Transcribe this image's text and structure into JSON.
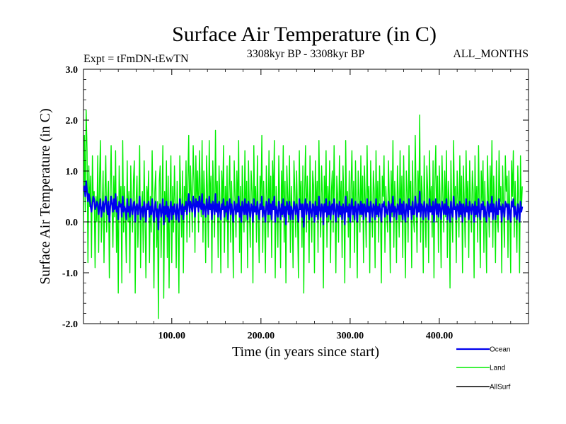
{
  "chart_data": {
    "type": "line",
    "title": "Surface Air Temperature (in C)",
    "subtitle_left": "Expt = tFmDN-tEwTN",
    "subtitle_center": "3308kyr BP - 3308kyr BP",
    "subtitle_right": "ALL_MONTHS",
    "xlabel": "Time (in years since start)",
    "ylabel": "Surface Air Temperature (in C)",
    "xlim": [
      1,
      500
    ],
    "ylim": [
      -2.0,
      3.0
    ],
    "xticks": [
      100,
      200,
      300,
      400
    ],
    "xtick_labels": [
      "100.00",
      "200.00",
      "300.00",
      "400.00"
    ],
    "yticks": [
      -2.0,
      -1.0,
      0.0,
      1.0,
      2.0,
      3.0
    ],
    "ytick_labels": [
      "-2.0",
      "-1.0",
      "0.0",
      "1.0",
      "2.0",
      "3.0"
    ],
    "zero_line": true,
    "x_start": 1,
    "x_step": 1,
    "series": [
      {
        "name": "Land",
        "color": "#00ee00",
        "values": [
          -0.2,
          1.7,
          0.2,
          2.2,
          1.4,
          -0.8,
          1.1,
          0.3,
          0.9,
          -0.7,
          1.3,
          0.4,
          0.6,
          -0.9,
          0.5,
          0.0,
          1.3,
          -0.6,
          0.8,
          1.6,
          -0.4,
          0.2,
          1.0,
          -0.8,
          0.5,
          1.3,
          -0.2,
          0.4,
          0.8,
          -1.1,
          0.6,
          1.5,
          0.3,
          -0.5,
          0.9,
          0.1,
          1.4,
          -0.6,
          0.5,
          -1.4,
          1.1,
          0.3,
          0.7,
          -1.2,
          1.6,
          -0.2,
          0.7,
          0.1,
          -0.8,
          1.2,
          0.0,
          0.6,
          -1.0,
          1.1,
          0.2,
          -0.2,
          0.8,
          1.2,
          -1.4,
          0.4,
          0.9,
          -0.5,
          0.3,
          1.5,
          -0.9,
          0.2,
          0.6,
          -0.6,
          1.2,
          0.1,
          -1.1,
          0.7,
          0.3,
          1.0,
          -0.8,
          0.5,
          -0.2,
          1.4,
          0.2,
          -1.3,
          0.6,
          1.0,
          -0.5,
          0.4,
          -1.9,
          0.8,
          1.1,
          -0.7,
          0.3,
          1.5,
          -1.5,
          0.6,
          0.0,
          1.2,
          -0.7,
          0.9,
          -1.3,
          0.4,
          1.3,
          -0.8,
          0.7,
          -0.2,
          1.1,
          0.3,
          -0.9,
          0.8,
          0.1,
          -1.4,
          1.3,
          0.5,
          -0.3,
          1.0,
          -1.0,
          0.7,
          0.2,
          1.2,
          -0.4,
          0.8,
          1.7,
          -0.3,
          1.1,
          0.5,
          -0.2,
          1.5,
          0.8,
          -0.6,
          1.3,
          0.4,
          1.0,
          -0.2,
          1.4,
          0.6,
          0.1,
          1.6,
          -0.4,
          1.0,
          0.4,
          -0.8,
          1.3,
          0.6,
          -0.5,
          1.6,
          0.3,
          0.9,
          -1.0,
          1.2,
          0.5,
          -0.3,
          1.8,
          0.2,
          0.8,
          -0.7,
          1.1,
          0.4,
          -1.0,
          1.0,
          0.3,
          1.5,
          -0.6,
          0.7,
          0.0,
          1.1,
          -0.9,
          0.6,
          1.3,
          -0.4,
          0.8,
          0.2,
          -1.1,
          1.2,
          0.5,
          -0.3,
          1.0,
          0.2,
          1.6,
          -0.6,
          0.7,
          -1.0,
          1.1,
          0.4,
          -0.2,
          1.4,
          0.0,
          0.8,
          -0.9,
          1.2,
          0.3,
          -0.5,
          1.0,
          0.6,
          -1.2,
          1.5,
          0.2,
          0.7,
          -0.4,
          1.3,
          0.1,
          -0.8,
          0.9,
          0.4,
          1.7,
          -0.6,
          0.8,
          0.2,
          -1.0,
          1.1,
          0.5,
          -0.3,
          1.4,
          0.0,
          0.9,
          -0.7,
          1.2,
          0.3,
          1.6,
          -1.1,
          0.7,
          0.2,
          -0.5,
          1.3,
          0.4,
          -0.9,
          1.0,
          0.1,
          1.5,
          -0.4,
          0.8,
          -1.2,
          1.1,
          0.5,
          0.0,
          1.3,
          -0.6,
          0.7,
          0.2,
          -0.9,
          1.2,
          0.6,
          -0.3,
          1.0,
          0.1,
          -1.1,
          1.4,
          0.3,
          0.8,
          -0.5,
          1.1,
          -1.4,
          0.6,
          1.5,
          -0.2,
          0.9,
          0.4,
          -0.8,
          1.3,
          0.2,
          -0.4,
          1.0,
          0.7,
          -1.0,
          1.2,
          0.1,
          0.8,
          -0.6,
          1.6,
          0.3,
          -0.3,
          1.1,
          0.5,
          -1.3,
          0.9,
          0.2,
          1.4,
          -0.5,
          0.7,
          0.0,
          1.2,
          -0.8,
          0.6,
          1.0,
          -0.2,
          1.5,
          0.3,
          -1.0,
          0.9,
          0.5,
          -0.4,
          1.3,
          0.1,
          0.8,
          -0.7,
          1.1,
          0.4,
          -1.2,
          1.6,
          0.2,
          0.6,
          -0.3,
          1.0,
          -0.9,
          0.7,
          1.4,
          0.0,
          0.8,
          -0.6,
          1.2,
          0.3,
          -1.1,
          1.0,
          0.5,
          -0.2,
          1.3,
          0.1,
          0.9,
          -0.8,
          1.1,
          0.4,
          -0.5,
          1.5,
          0.2,
          0.7,
          -1.0,
          1.2,
          0.3,
          -0.3,
          1.0,
          0.6,
          -0.9,
          1.4,
          0.1,
          0.8,
          -0.4,
          1.1,
          0.3,
          -1.2,
          0.9,
          0.5,
          1.3,
          -0.6,
          0.7,
          0.2,
          -0.2,
          1.2,
          0.4,
          -1.0,
          1.0,
          0.1,
          1.6,
          -0.5,
          0.8,
          0.3,
          -0.8,
          1.1,
          0.5,
          -0.3,
          1.4,
          0.0,
          0.9,
          -0.7,
          1.3,
          0.2,
          -1.1,
          1.0,
          0.6,
          -0.4,
          1.5,
          0.3,
          0.8,
          -0.9,
          1.2,
          0.1,
          -0.2,
          1.7,
          0.4,
          -0.6,
          1.0,
          0.2,
          2.1,
          -0.4,
          0.9,
          0.5,
          -1.0,
          1.3,
          0.3,
          -0.5,
          1.1,
          0.6,
          -0.8,
          1.4,
          0.2,
          0.7,
          -0.3,
          1.2,
          -1.1,
          0.8,
          1.5,
          0.0,
          0.9,
          -0.6,
          1.1,
          0.3,
          -0.9,
          1.3,
          0.5,
          -0.2,
          1.0,
          0.1,
          1.4,
          -0.7,
          0.8,
          0.4,
          -1.3,
          1.2,
          0.2,
          -0.4,
          1.6,
          0.3,
          0.7,
          -0.8,
          1.0,
          0.5,
          -0.3,
          1.3,
          0.1,
          0.9,
          -1.0,
          1.1,
          0.4,
          -0.5,
          1.4,
          0.2,
          0.8,
          -0.7,
          1.2,
          0.3,
          -0.2,
          1.0,
          0.6,
          -1.1,
          1.3,
          0.1,
          0.7,
          -0.4,
          1.5,
          0.2,
          -0.9,
          1.0,
          0.4,
          1.2,
          -0.6,
          0.8,
          0.0,
          -1.0,
          1.3,
          0.5,
          -0.3,
          1.1,
          0.2,
          1.6,
          -0.5,
          0.9,
          0.3,
          -0.8,
          1.2,
          0.1,
          -0.2,
          1.4,
          0.4,
          0.7,
          -1.0,
          1.1,
          0.3,
          -0.5,
          1.3,
          0.6,
          0.9,
          -0.7,
          1.0,
          0.2,
          -1.0,
          1.2,
          0.5,
          1.4,
          -0.3,
          0.8,
          0.1,
          -0.6,
          1.1,
          0.4,
          -1.0,
          1.3,
          0.2,
          0.7
        ]
      },
      {
        "name": "Ocean",
        "color": "#0000ee",
        "values": [
          0.6,
          0.7,
          0.5,
          0.8,
          0.6,
          0.4,
          0.55,
          0.45,
          0.3,
          0.2,
          0.35,
          0.5,
          0.45,
          0.25,
          0.3,
          0.4,
          0.35,
          0.15,
          0.3,
          0.45,
          0.1,
          0.25,
          0.4,
          0.2,
          0.35,
          0.5,
          0.3,
          0.15,
          0.4,
          0.0,
          0.3,
          0.5,
          0.35,
          0.2,
          0.45,
          0.25,
          0.55,
          0.2,
          0.3,
          0.05,
          0.4,
          0.3,
          0.35,
          0.1,
          0.5,
          0.2,
          0.3,
          0.25,
          0.05,
          0.45,
          0.2,
          0.3,
          0.1,
          0.45,
          0.25,
          0.15,
          0.35,
          0.4,
          0.0,
          0.3,
          0.35,
          0.15,
          0.3,
          0.5,
          0.05,
          0.25,
          0.3,
          0.1,
          0.4,
          0.25,
          0.0,
          0.35,
          0.25,
          0.4,
          0.1,
          0.3,
          0.15,
          0.45,
          0.2,
          0.0,
          0.3,
          0.4,
          0.1,
          0.25,
          -0.15,
          0.3,
          0.35,
          0.1,
          0.2,
          0.45,
          -0.05,
          0.3,
          0.15,
          0.4,
          0.1,
          0.3,
          0.0,
          0.25,
          0.4,
          0.05,
          0.3,
          0.15,
          0.35,
          0.2,
          0.05,
          0.35,
          0.2,
          0.0,
          0.45,
          0.3,
          0.15,
          0.35,
          0.05,
          0.3,
          0.25,
          0.4,
          0.15,
          0.35,
          0.55,
          0.2,
          0.4,
          0.3,
          0.2,
          0.5,
          0.35,
          0.1,
          0.45,
          0.3,
          0.4,
          0.2,
          0.5,
          0.3,
          0.25,
          0.55,
          0.15,
          0.35,
          0.3,
          0.1,
          0.45,
          0.3,
          0.15,
          0.5,
          0.25,
          0.35,
          0.05,
          0.4,
          0.3,
          0.15,
          0.55,
          0.2,
          0.35,
          0.1,
          0.4,
          0.25,
          0.05,
          0.35,
          0.25,
          0.45,
          0.1,
          0.3,
          0.2,
          0.4,
          0.05,
          0.3,
          0.45,
          0.15,
          0.35,
          0.2,
          0.0,
          0.4,
          0.3,
          0.15,
          0.35,
          0.2,
          0.5,
          0.1,
          0.3,
          0.0,
          0.4,
          0.25,
          0.15,
          0.45,
          0.15,
          0.35,
          0.05,
          0.4,
          0.25,
          0.1,
          0.35,
          0.3,
          0.0,
          0.45,
          0.2,
          0.3,
          0.15,
          0.4,
          0.2,
          0.05,
          0.35,
          0.25,
          0.5,
          0.1,
          0.3,
          0.2,
          0.0,
          0.4,
          0.3,
          0.15,
          0.45,
          0.15,
          0.35,
          0.05,
          0.4,
          0.25,
          0.5,
          0.0,
          0.3,
          0.2,
          0.1,
          0.4,
          0.25,
          0.05,
          0.35,
          0.15,
          0.45,
          0.1,
          0.3,
          -0.05,
          0.4,
          0.3,
          0.15,
          0.4,
          0.05,
          0.3,
          0.2,
          0.05,
          0.4,
          0.3,
          0.15,
          0.35,
          0.2,
          0.0,
          0.45,
          0.25,
          0.35,
          0.1,
          0.35,
          -0.1,
          0.3,
          0.45,
          0.15,
          0.35,
          0.25,
          0.05,
          0.4,
          0.2,
          0.1,
          0.35,
          0.3,
          0.0,
          0.4,
          0.15,
          0.3,
          0.05,
          0.5,
          0.25,
          0.1,
          0.35,
          0.3,
          -0.05,
          0.35,
          0.2,
          0.45,
          0.1,
          0.3,
          0.15,
          0.4,
          0.05,
          0.3,
          0.35,
          0.15,
          0.45,
          0.2,
          0.0,
          0.35,
          0.3,
          0.1,
          0.4,
          0.15,
          0.3,
          0.05,
          0.35,
          0.25,
          -0.05,
          0.5,
          0.2,
          0.3,
          0.1,
          0.35,
          0.0,
          0.3,
          0.45,
          0.15,
          0.3,
          0.05,
          0.4,
          0.25,
          0.0,
          0.35,
          0.3,
          0.15,
          0.4,
          0.15,
          0.35,
          0.05,
          0.35,
          0.25,
          0.1,
          0.45,
          0.2,
          0.3,
          0.0,
          0.4,
          0.25,
          0.1,
          0.35,
          0.3,
          0.05,
          0.45,
          0.15,
          0.3,
          0.1,
          0.35,
          0.25,
          0.0,
          0.35,
          0.3,
          0.4,
          0.1,
          0.3,
          0.2,
          0.15,
          0.4,
          0.3,
          0.0,
          0.35,
          0.2,
          0.5,
          0.1,
          0.3,
          0.25,
          0.05,
          0.35,
          0.3,
          0.15,
          0.45,
          0.15,
          0.35,
          0.05,
          0.4,
          0.2,
          0.0,
          0.35,
          0.3,
          0.1,
          0.45,
          0.25,
          0.3,
          0.05,
          0.4,
          0.15,
          0.15,
          0.5,
          0.3,
          0.1,
          0.35,
          0.2,
          0.6,
          0.1,
          0.35,
          0.3,
          0.05,
          0.4,
          0.25,
          0.1,
          0.35,
          0.3,
          0.05,
          0.45,
          0.2,
          0.3,
          0.15,
          0.4,
          0.0,
          0.3,
          0.45,
          0.15,
          0.35,
          0.1,
          0.35,
          0.25,
          0.05,
          0.4,
          0.3,
          0.15,
          0.35,
          0.15,
          0.45,
          0.05,
          0.3,
          0.25,
          0.0,
          0.4,
          0.2,
          0.1,
          0.5,
          0.25,
          0.3,
          0.05,
          0.35,
          0.3,
          0.1,
          0.4,
          0.15,
          0.35,
          0.0,
          0.35,
          0.25,
          0.1,
          0.45,
          0.2,
          0.3,
          0.05,
          0.4,
          0.25,
          0.15,
          0.35,
          0.3,
          0.0,
          0.4,
          0.15,
          0.3,
          0.1,
          0.45,
          0.2,
          0.05,
          0.35,
          0.25,
          0.4,
          0.1,
          0.3,
          0.15,
          0.0,
          0.4,
          0.3,
          0.1,
          0.35,
          0.2,
          0.5,
          0.05,
          0.35,
          0.25,
          0.05,
          0.4,
          0.15,
          0.15,
          0.45,
          0.25,
          0.3,
          0.0,
          0.35,
          0.25,
          0.1,
          0.4,
          0.3,
          0.35,
          0.05,
          0.35,
          0.2,
          0.0,
          0.4,
          0.3,
          0.45,
          0.1,
          0.3,
          0.15,
          0.05,
          0.35,
          0.25,
          0.0,
          0.4,
          0.2,
          0.3
        ]
      },
      {
        "name": "AllSurf",
        "color": "#000000",
        "values": []
      }
    ],
    "legend": [
      {
        "name": "Ocean",
        "color": "#0000ee",
        "label": "Ocean"
      },
      {
        "name": "Land",
        "color": "#00ee00",
        "label": "Land"
      },
      {
        "name": "AllSurf",
        "color": "#000000",
        "label": "AllSurf"
      }
    ]
  }
}
